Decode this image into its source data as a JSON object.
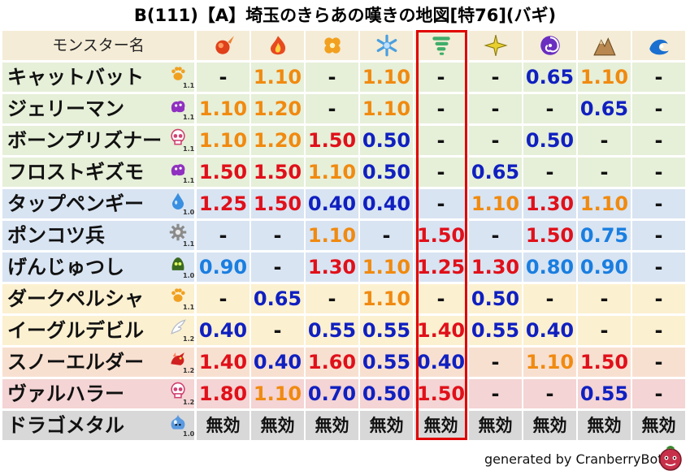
{
  "title": "B(111)【A】埼玉のきらあの嘆きの地図[特76](バギ)",
  "header": {
    "name_label": "モンスター名",
    "columns": [
      {
        "icon": "fire-ball-icon",
        "color": "#e0401a"
      },
      {
        "icon": "flame-icon",
        "color": "#e84a20"
      },
      {
        "icon": "clover-icon",
        "color": "#f2a020"
      },
      {
        "icon": "snowflake-icon",
        "color": "#4a9fe0"
      },
      {
        "icon": "tornado-icon",
        "color": "#3fae6a"
      },
      {
        "icon": "lightning-spark-icon",
        "color": "#e8d030"
      },
      {
        "icon": "purple-spiral-icon",
        "color": "#6a2ec0"
      },
      {
        "icon": "rocky-mountain-icon",
        "color": "#b88850"
      },
      {
        "icon": "water-wave-icon",
        "color": "#1a70d0"
      }
    ]
  },
  "colors": {
    "red": "#e0101a",
    "orange": "#f08a10",
    "blue": "#1020c0",
    "lightblue": "#1a7ee0",
    "black": "#111111"
  },
  "rows": [
    {
      "name": "キャットバット",
      "icon": "paw-icon",
      "icon_color": "#f0a020",
      "level": "1.1",
      "bg": "#e6efd8",
      "values": [
        "-",
        "1.10",
        "-",
        "1.10",
        "-",
        "-",
        "0.65",
        "1.10",
        "-"
      ],
      "colors": [
        "black",
        "orange",
        "black",
        "orange",
        "black",
        "black",
        "blue",
        "orange",
        "black"
      ]
    },
    {
      "name": "ジェリーマン",
      "icon": "purple-blob-icon",
      "icon_color": "#9030c0",
      "level": "1.1",
      "bg": "#e6efd8",
      "values": [
        "1.10",
        "1.20",
        "-",
        "1.10",
        "-",
        "-",
        "-",
        "0.65",
        "-"
      ],
      "colors": [
        "orange",
        "orange",
        "black",
        "orange",
        "black",
        "black",
        "black",
        "blue",
        "black"
      ]
    },
    {
      "name": "ボーンプリズナー",
      "icon": "skull-icon",
      "icon_color": "#d04070",
      "level": "1.1",
      "bg": "#e6efd8",
      "values": [
        "1.10",
        "1.20",
        "1.50",
        "0.50",
        "-",
        "-",
        "0.50",
        "-",
        "-"
      ],
      "colors": [
        "orange",
        "orange",
        "red",
        "blue",
        "black",
        "black",
        "blue",
        "black",
        "black"
      ]
    },
    {
      "name": "フロストギズモ",
      "icon": "purple-blob-icon",
      "icon_color": "#9030c0",
      "level": "1.1",
      "bg": "#e6efd8",
      "values": [
        "1.50",
        "1.50",
        "1.10",
        "0.50",
        "-",
        "0.65",
        "-",
        "-",
        "-"
      ],
      "colors": [
        "red",
        "red",
        "orange",
        "blue",
        "black",
        "blue",
        "black",
        "black",
        "black"
      ]
    },
    {
      "name": "タップペンギー",
      "icon": "water-drop-icon",
      "icon_color": "#3a8fe0",
      "level": "1.0",
      "bg": "#d8e4f2",
      "values": [
        "1.25",
        "1.50",
        "0.40",
        "0.40",
        "-",
        "1.10",
        "1.30",
        "1.10",
        "-"
      ],
      "colors": [
        "red",
        "red",
        "blue",
        "blue",
        "black",
        "orange",
        "red",
        "orange",
        "black"
      ]
    },
    {
      "name": "ポンコツ兵",
      "icon": "gear-icon",
      "icon_color": "#8a8a8a",
      "level": "1.1",
      "bg": "#d8e4f2",
      "values": [
        "-",
        "-",
        "1.10",
        "-",
        "1.50",
        "-",
        "1.50",
        "0.75",
        "-"
      ],
      "colors": [
        "black",
        "black",
        "orange",
        "black",
        "red",
        "black",
        "red",
        "lightblue",
        "black"
      ]
    },
    {
      "name": "げんじゅつし",
      "icon": "green-slime-icon",
      "icon_color": "#3a6a20",
      "level": "1.0",
      "bg": "#d8e4f2",
      "values": [
        "0.90",
        "-",
        "1.30",
        "1.10",
        "1.25",
        "1.30",
        "0.80",
        "0.90",
        "-"
      ],
      "colors": [
        "lightblue",
        "black",
        "red",
        "orange",
        "red",
        "red",
        "lightblue",
        "lightblue",
        "black"
      ]
    },
    {
      "name": "ダークペルシャ",
      "icon": "paw-icon",
      "icon_color": "#f0a020",
      "level": "1.1",
      "bg": "#fbf0d0",
      "values": [
        "-",
        "0.65",
        "-",
        "1.10",
        "-",
        "0.50",
        "-",
        "-",
        "-"
      ],
      "colors": [
        "black",
        "blue",
        "black",
        "orange",
        "black",
        "blue",
        "black",
        "black",
        "black"
      ]
    },
    {
      "name": "イーグルデビル",
      "icon": "wing-icon",
      "icon_color": "#b0b8c8",
      "level": "1.2",
      "bg": "#fbf0d0",
      "values": [
        "0.40",
        "-",
        "0.55",
        "0.55",
        "1.40",
        "0.55",
        "0.40",
        "-",
        "-"
      ],
      "colors": [
        "blue",
        "black",
        "blue",
        "blue",
        "red",
        "blue",
        "blue",
        "black",
        "black"
      ]
    },
    {
      "name": "スノーエルダー",
      "icon": "red-dragon-icon",
      "icon_color": "#d02020",
      "level": "1.2",
      "bg": "#f8e0d0",
      "values": [
        "1.40",
        "0.40",
        "1.60",
        "0.55",
        "0.40",
        "-",
        "1.10",
        "1.50",
        "-"
      ],
      "colors": [
        "red",
        "blue",
        "red",
        "blue",
        "blue",
        "black",
        "orange",
        "red",
        "black"
      ]
    },
    {
      "name": "ヴァルハラー",
      "icon": "skull-icon",
      "icon_color": "#d04070",
      "level": "1.2",
      "bg": "#f4d4d4",
      "values": [
        "1.80",
        "1.10",
        "0.70",
        "0.50",
        "1.50",
        "-",
        "-",
        "0.55",
        "-"
      ],
      "colors": [
        "red",
        "orange",
        "blue",
        "blue",
        "red",
        "black",
        "black",
        "blue",
        "black"
      ]
    },
    {
      "name": "ドラゴメタル",
      "icon": "metal-slime-icon",
      "icon_color": "#5a9ae0",
      "level": "1.0",
      "bg": "#d8d8d8",
      "values": [
        "無効",
        "無効",
        "無効",
        "無効",
        "無効",
        "無効",
        "無効",
        "無効",
        "無効"
      ],
      "colors": [
        "black",
        "black",
        "black",
        "black",
        "black",
        "black",
        "black",
        "black",
        "black"
      ]
    }
  ],
  "header_bg": "#f4ecd6",
  "footer": "generated by CranberryBot"
}
